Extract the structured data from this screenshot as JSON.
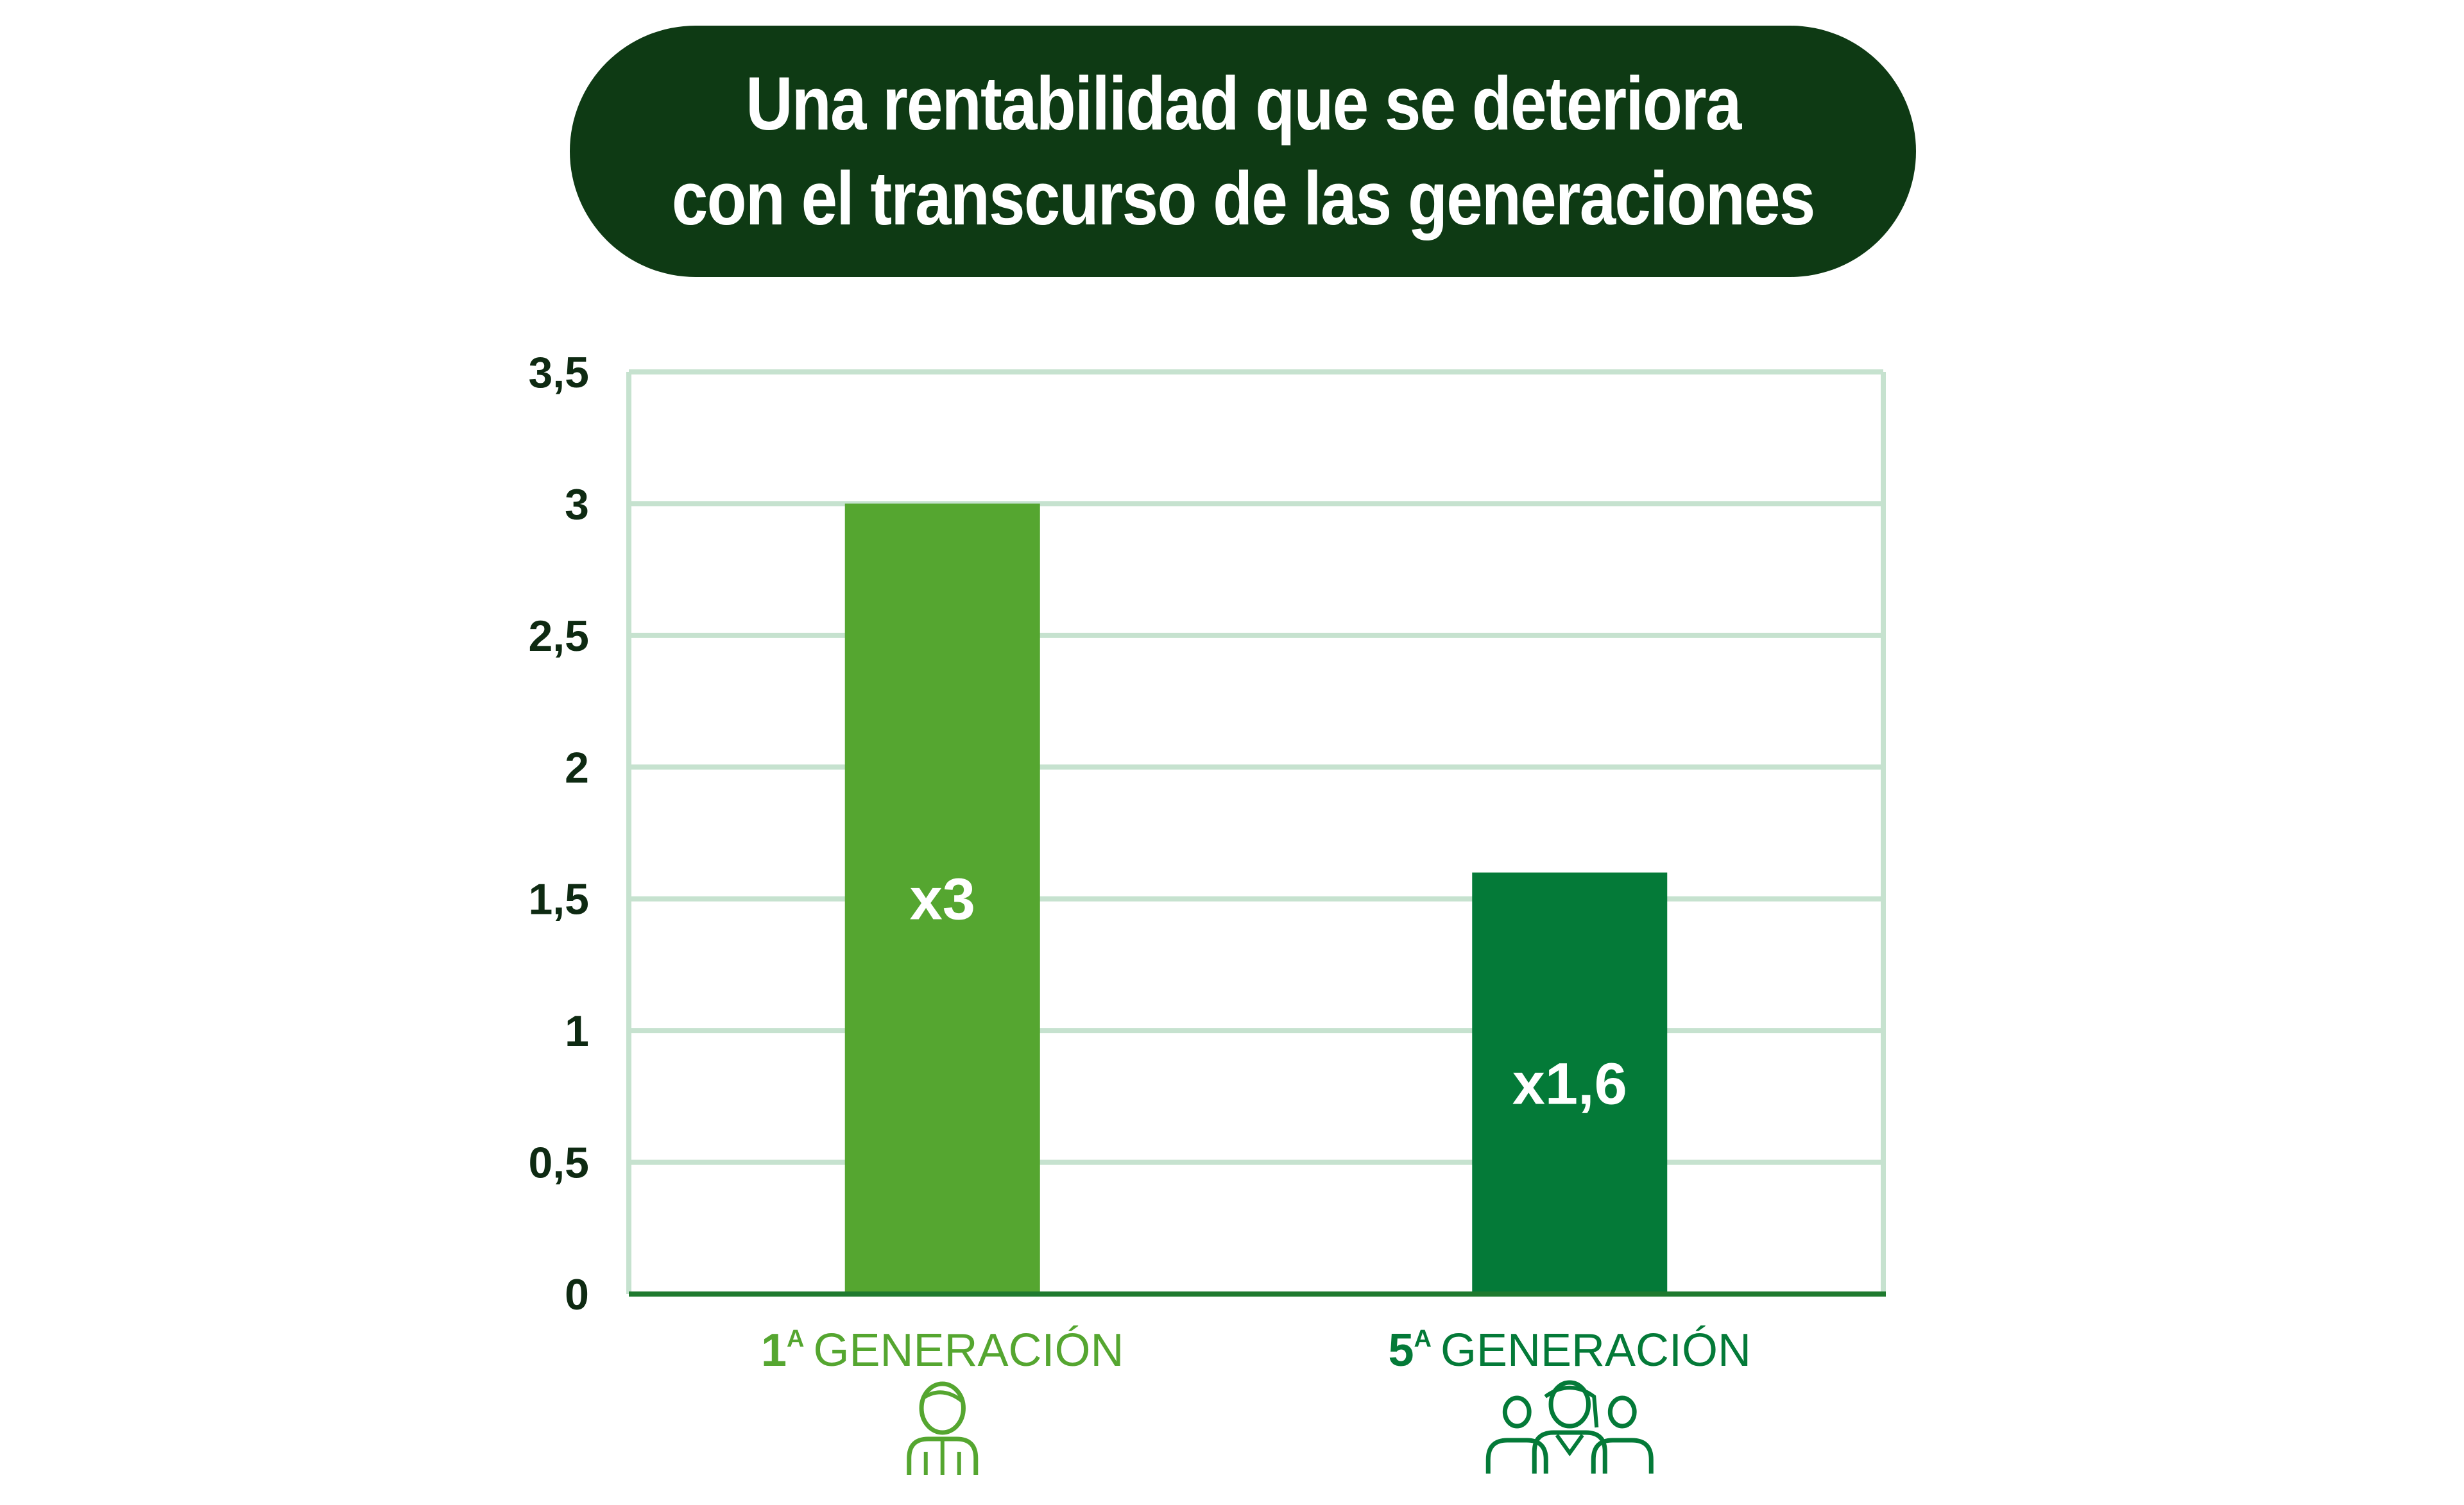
{
  "title": {
    "line1": "Una rentabilidad que se deteriora",
    "line2": "con el transcurso de las generaciones"
  },
  "colors": {
    "title_bg": "#0e3a14",
    "bar_gen1": "#55a630",
    "bar_gen5": "#047a38",
    "grid": "#c6e2cf",
    "axis": "#1f7a2f"
  },
  "chart_data": {
    "type": "bar",
    "ylim": [
      0,
      3.5
    ],
    "yticks": [
      "0",
      "0,5",
      "1",
      "1,5",
      "2",
      "2,5",
      "3",
      "3,5"
    ],
    "grid": true,
    "categories": [
      {
        "number": "1",
        "superscript": "A",
        "label": "GENERACIÓN",
        "icon": "single-person-icon"
      },
      {
        "number": "5",
        "superscript": "A",
        "label": "GENERACIÓN",
        "icon": "group-of-people-icon"
      }
    ],
    "values": [
      3,
      1.6
    ],
    "data_labels": [
      "x3",
      "x1,6"
    ]
  }
}
